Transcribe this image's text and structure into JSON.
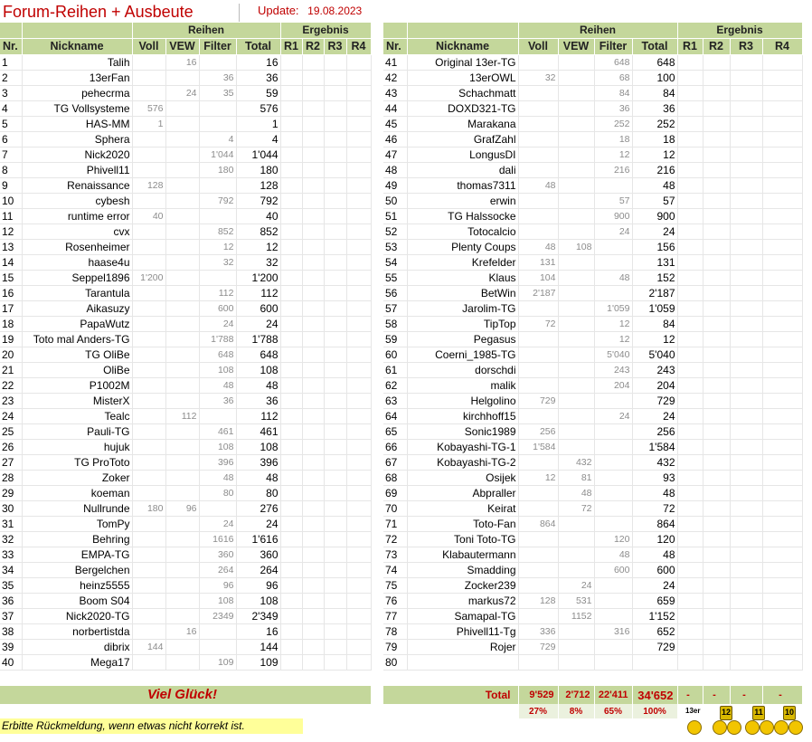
{
  "header": {
    "title": "Forum-Reihen + Ausbeute",
    "update_label": "Update:",
    "update_date": "19.08.2023"
  },
  "table_headers": {
    "reihen": "Reihen",
    "ergebnis": "Ergebnis",
    "nr": "Nr.",
    "nickname": "Nickname",
    "voll": "Voll",
    "vew": "VEW",
    "filter": "Filter",
    "total": "Total",
    "r1": "R1",
    "r2": "R2",
    "r3": "R3",
    "r4": "R4"
  },
  "rows_left": [
    [
      "1",
      "Talih",
      "",
      "16",
      "",
      "16"
    ],
    [
      "2",
      "13erFan",
      "",
      "",
      "36",
      "36"
    ],
    [
      "3",
      "pehecrma",
      "",
      "24",
      "35",
      "59"
    ],
    [
      "4",
      "TG Vollsysteme",
      "576",
      "",
      "",
      "576"
    ],
    [
      "5",
      "HAS-MM",
      "1",
      "",
      "",
      "1"
    ],
    [
      "6",
      "Sphera",
      "",
      "",
      "4",
      "4"
    ],
    [
      "7",
      "Nick2020",
      "",
      "",
      "1'044",
      "1'044"
    ],
    [
      "8",
      "Phivell11",
      "",
      "",
      "180",
      "180"
    ],
    [
      "9",
      "Renaissance",
      "128",
      "",
      "",
      "128"
    ],
    [
      "10",
      "cybesh",
      "",
      "",
      "792",
      "792"
    ],
    [
      "11",
      "runtime error",
      "40",
      "",
      "",
      "40"
    ],
    [
      "12",
      "cvx",
      "",
      "",
      "852",
      "852"
    ],
    [
      "13",
      "Rosenheimer",
      "",
      "",
      "12",
      "12"
    ],
    [
      "14",
      "haase4u",
      "",
      "",
      "32",
      "32"
    ],
    [
      "15",
      "Seppel1896",
      "1'200",
      "",
      "",
      "1'200"
    ],
    [
      "16",
      "Tarantula",
      "",
      "",
      "112",
      "112"
    ],
    [
      "17",
      "Aikasuzy",
      "",
      "",
      "600",
      "600"
    ],
    [
      "18",
      "PapaWutz",
      "",
      "",
      "24",
      "24"
    ],
    [
      "19",
      "Toto mal Anders-TG",
      "",
      "",
      "1'788",
      "1'788"
    ],
    [
      "20",
      "TG OliBe",
      "",
      "",
      "648",
      "648"
    ],
    [
      "21",
      "OliBe",
      "",
      "",
      "108",
      "108"
    ],
    [
      "22",
      "P1002M",
      "",
      "",
      "48",
      "48"
    ],
    [
      "23",
      "MisterX",
      "",
      "",
      "36",
      "36"
    ],
    [
      "24",
      "Tealc",
      "",
      "112",
      "",
      "112"
    ],
    [
      "25",
      "Pauli-TG",
      "",
      "",
      "461",
      "461"
    ],
    [
      "26",
      "hujuk",
      "",
      "",
      "108",
      "108"
    ],
    [
      "27",
      "TG ProToto",
      "",
      "",
      "396",
      "396"
    ],
    [
      "28",
      "Zoker",
      "",
      "",
      "48",
      "48"
    ],
    [
      "29",
      "koeman",
      "",
      "",
      "80",
      "80"
    ],
    [
      "30",
      "Nullrunde",
      "180",
      "96",
      "",
      "276"
    ],
    [
      "31",
      "TomPy",
      "",
      "",
      "24",
      "24"
    ],
    [
      "32",
      "Behring",
      "",
      "",
      "1616",
      "1'616"
    ],
    [
      "33",
      "EMPA-TG",
      "",
      "",
      "360",
      "360"
    ],
    [
      "34",
      "Bergelchen",
      "",
      "",
      "264",
      "264"
    ],
    [
      "35",
      "heinz5555",
      "",
      "",
      "96",
      "96"
    ],
    [
      "36",
      "Boom S04",
      "",
      "",
      "108",
      "108"
    ],
    [
      "37",
      "Nick2020-TG",
      "",
      "",
      "2349",
      "2'349"
    ],
    [
      "38",
      "norbertistda",
      "",
      "16",
      "",
      "16"
    ],
    [
      "39",
      "dibrix",
      "144",
      "",
      "",
      "144"
    ],
    [
      "40",
      "Mega17",
      "",
      "",
      "109",
      "109"
    ]
  ],
  "rows_right": [
    [
      "41",
      "Original 13er-TG",
      "",
      "",
      "648",
      "648"
    ],
    [
      "42",
      "13erOWL",
      "32",
      "",
      "68",
      "100"
    ],
    [
      "43",
      "Schachmatt",
      "",
      "",
      "84",
      "84"
    ],
    [
      "44",
      "DOXD321-TG",
      "",
      "",
      "36",
      "36"
    ],
    [
      "45",
      "Marakana",
      "",
      "",
      "252",
      "252"
    ],
    [
      "46",
      "GrafZahl",
      "",
      "",
      "18",
      "18"
    ],
    [
      "47",
      "LongusDI",
      "",
      "",
      "12",
      "12"
    ],
    [
      "48",
      "dali",
      "",
      "",
      "216",
      "216"
    ],
    [
      "49",
      "thomas7311",
      "48",
      "",
      "",
      "48"
    ],
    [
      "50",
      "erwin",
      "",
      "",
      "57",
      "57"
    ],
    [
      "51",
      "TG Halssocke",
      "",
      "",
      "900",
      "900"
    ],
    [
      "52",
      "Totocalcio",
      "",
      "",
      "24",
      "24"
    ],
    [
      "53",
      "Plenty Coups",
      "48",
      "108",
      "",
      "156"
    ],
    [
      "54",
      "Krefelder",
      "131",
      "",
      "",
      "131"
    ],
    [
      "55",
      "Klaus",
      "104",
      "",
      "48",
      "152"
    ],
    [
      "56",
      "BetWin",
      "2'187",
      "",
      "",
      "2'187"
    ],
    [
      "57",
      "Jarolim-TG",
      "",
      "",
      "1'059",
      "1'059"
    ],
    [
      "58",
      "TipTop",
      "72",
      "",
      "12",
      "84"
    ],
    [
      "59",
      "Pegasus",
      "",
      "",
      "12",
      "12"
    ],
    [
      "60",
      "Coerni_1985-TG",
      "",
      "",
      "5'040",
      "5'040"
    ],
    [
      "61",
      "dorschdi",
      "",
      "",
      "243",
      "243"
    ],
    [
      "62",
      "malik",
      "",
      "",
      "204",
      "204"
    ],
    [
      "63",
      "Helgolino",
      "729",
      "",
      "",
      "729"
    ],
    [
      "64",
      "kirchhoff15",
      "",
      "",
      "24",
      "24"
    ],
    [
      "65",
      "Sonic1989",
      "256",
      "",
      "",
      "256"
    ],
    [
      "66",
      "Kobayashi-TG-1",
      "1'584",
      "",
      "",
      "1'584"
    ],
    [
      "67",
      "Kobayashi-TG-2",
      "",
      "432",
      "",
      "432"
    ],
    [
      "68",
      "Osijek",
      "12",
      "81",
      "",
      "93"
    ],
    [
      "69",
      "Abpraller",
      "",
      "48",
      "",
      "48"
    ],
    [
      "70",
      "Keirat",
      "",
      "72",
      "",
      "72"
    ],
    [
      "71",
      "Toto-Fan",
      "864",
      "",
      "",
      "864"
    ],
    [
      "72",
      "Toni Toto-TG",
      "",
      "",
      "120",
      "120"
    ],
    [
      "73",
      "Klabautermann",
      "",
      "",
      "48",
      "48"
    ],
    [
      "74",
      "Smadding",
      "",
      "",
      "600",
      "600"
    ],
    [
      "75",
      "Zocker239",
      "",
      "24",
      "",
      "24"
    ],
    [
      "76",
      "markus72",
      "128",
      "531",
      "",
      "659"
    ],
    [
      "77",
      "Samapal-TG",
      "",
      "1152",
      "",
      "1'152"
    ],
    [
      "78",
      "Phivell11-Tg",
      "336",
      "",
      "316",
      "652"
    ],
    [
      "79",
      "Rojer",
      "729",
      "",
      "",
      "729"
    ],
    [
      "80",
      "",
      "",
      "",
      "",
      ""
    ]
  ],
  "footer": {
    "slogan": "Viel Glück!",
    "total_label": "Total",
    "total_voll": "9'529",
    "total_vew": "2'712",
    "total_filter": "22'411",
    "total_total": "34'652",
    "r_dash": "-",
    "pct_voll": "27%",
    "pct_vew": "8%",
    "pct_filter": "65%",
    "pct_total": "100%",
    "note": "Erbitte Rückmeldung, wenn etwas nicht korrekt ist."
  },
  "badges": [
    "13er",
    "12",
    "11",
    "10"
  ],
  "colors": {
    "header_green": "#c4d79b",
    "accent_red": "#c00000",
    "note_yellow": "#ffff99"
  }
}
